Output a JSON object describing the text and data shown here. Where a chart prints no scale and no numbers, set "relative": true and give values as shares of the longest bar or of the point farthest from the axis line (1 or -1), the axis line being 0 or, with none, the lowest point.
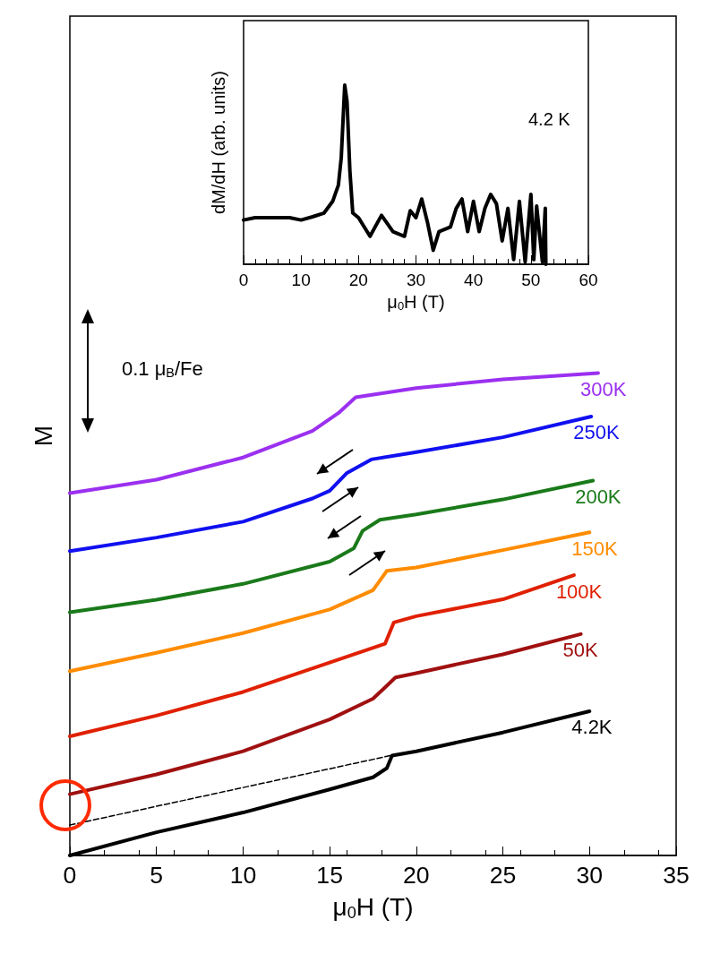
{
  "chart_data": [
    {
      "type": "line",
      "relative": true,
      "xlabel": "μ$_{0}$H (T)",
      "ylabel": "M",
      "xlim": [
        0,
        35
      ],
      "xticks": [
        0,
        5,
        10,
        15,
        20,
        25,
        30,
        35
      ],
      "tick_labels": "x",
      "annotations": [
        "0.1 μ$_{B}$/Fe"
      ],
      "series": [
        {
          "name": "300K",
          "color": "#9b30f0",
          "x": [
            0,
            5,
            10,
            14,
            15.5,
            16.5,
            20,
            25,
            30.5
          ],
          "values": [
            0.751,
            0.779,
            0.825,
            0.88,
            0.917,
            0.95,
            0.969,
            0.987,
            1.0
          ]
        },
        {
          "name": "250K",
          "color": "#1010f0",
          "x": [
            0,
            5,
            10,
            14,
            15,
            16,
            17.4,
            20,
            25,
            30.1
          ],
          "values": [
            0.631,
            0.659,
            0.692,
            0.74,
            0.756,
            0.793,
            0.821,
            0.836,
            0.867,
            0.91
          ]
        },
        {
          "name": "200K",
          "color": "#1a7a1a",
          "x": [
            0,
            5,
            10,
            15,
            16.4,
            16.9,
            17.9,
            20,
            25,
            30.2
          ],
          "values": [
            0.504,
            0.53,
            0.563,
            0.609,
            0.637,
            0.673,
            0.696,
            0.707,
            0.738,
            0.777
          ]
        },
        {
          "name": "150K",
          "color": "#ff8c00",
          "x": [
            0,
            5,
            10,
            15,
            17.5,
            18,
            18.3,
            20,
            25,
            30
          ],
          "values": [
            0.382,
            0.42,
            0.461,
            0.51,
            0.55,
            0.575,
            0.59,
            0.597,
            0.633,
            0.67
          ]
        },
        {
          "name": "100K",
          "color": "#e02000",
          "x": [
            0,
            5,
            10,
            15,
            18.2,
            18.7,
            20,
            25,
            29.1
          ],
          "values": [
            0.247,
            0.29,
            0.339,
            0.4,
            0.439,
            0.483,
            0.496,
            0.531,
            0.581
          ]
        },
        {
          "name": "50K",
          "color": "#a01010",
          "x": [
            0,
            5,
            10,
            15,
            17.5,
            18.3,
            18.8,
            20,
            25,
            29.5
          ],
          "values": [
            0.127,
            0.168,
            0.216,
            0.282,
            0.325,
            0.352,
            0.369,
            0.378,
            0.417,
            0.459
          ]
        },
        {
          "name": "4.2K",
          "color": "#000000",
          "x": [
            0,
            5,
            10,
            15,
            17.5,
            18.3,
            18.6,
            20,
            25,
            30
          ],
          "values": [
            0.0,
            0.048,
            0.089,
            0.137,
            0.162,
            0.181,
            0.207,
            0.216,
            0.255,
            0.299
          ]
        },
        {
          "color": "#000000",
          "line_style": "dashed",
          "x": [
            0,
            18.5
          ],
          "values": [
            0.063,
            0.207
          ]
        }
      ]
    },
    {
      "type": "line",
      "relative": true,
      "xlabel": "μ$_{0}$H (T)",
      "ylabel": "dM/dH (arb. units)",
      "xlim": [
        0,
        60
      ],
      "xticks": [
        0,
        10,
        20,
        30,
        40,
        50,
        60
      ],
      "tick_labels": "x",
      "annotations": [
        "4.2 K"
      ],
      "series": [
        {
          "color": "#000000",
          "x": [
            0,
            2,
            5,
            8,
            10,
            12,
            14,
            15.5,
            16.5,
            17,
            17.6,
            18,
            18.5,
            19,
            20,
            22,
            24,
            26,
            28,
            29,
            30,
            31,
            32,
            33,
            34,
            36,
            37,
            38,
            39,
            40,
            41,
            42,
            43,
            44,
            45,
            46,
            47,
            48,
            49,
            50,
            50.5,
            51,
            52,
            52.5,
            52.6
          ],
          "values": [
            0.247,
            0.26,
            0.26,
            0.26,
            0.247,
            0.265,
            0.286,
            0.351,
            0.442,
            0.597,
            1.0,
            0.909,
            0.519,
            0.286,
            0.26,
            0.156,
            0.273,
            0.182,
            0.156,
            0.299,
            0.26,
            0.364,
            0.234,
            0.078,
            0.182,
            0.208,
            0.312,
            0.364,
            0.182,
            0.351,
            0.182,
            0.312,
            0.39,
            0.338,
            0.13,
            0.312,
            0.026,
            0.351,
            0.013,
            0.39,
            0.026,
            0.325,
            0.013,
            0.312,
            0.0
          ]
        }
      ]
    }
  ]
}
